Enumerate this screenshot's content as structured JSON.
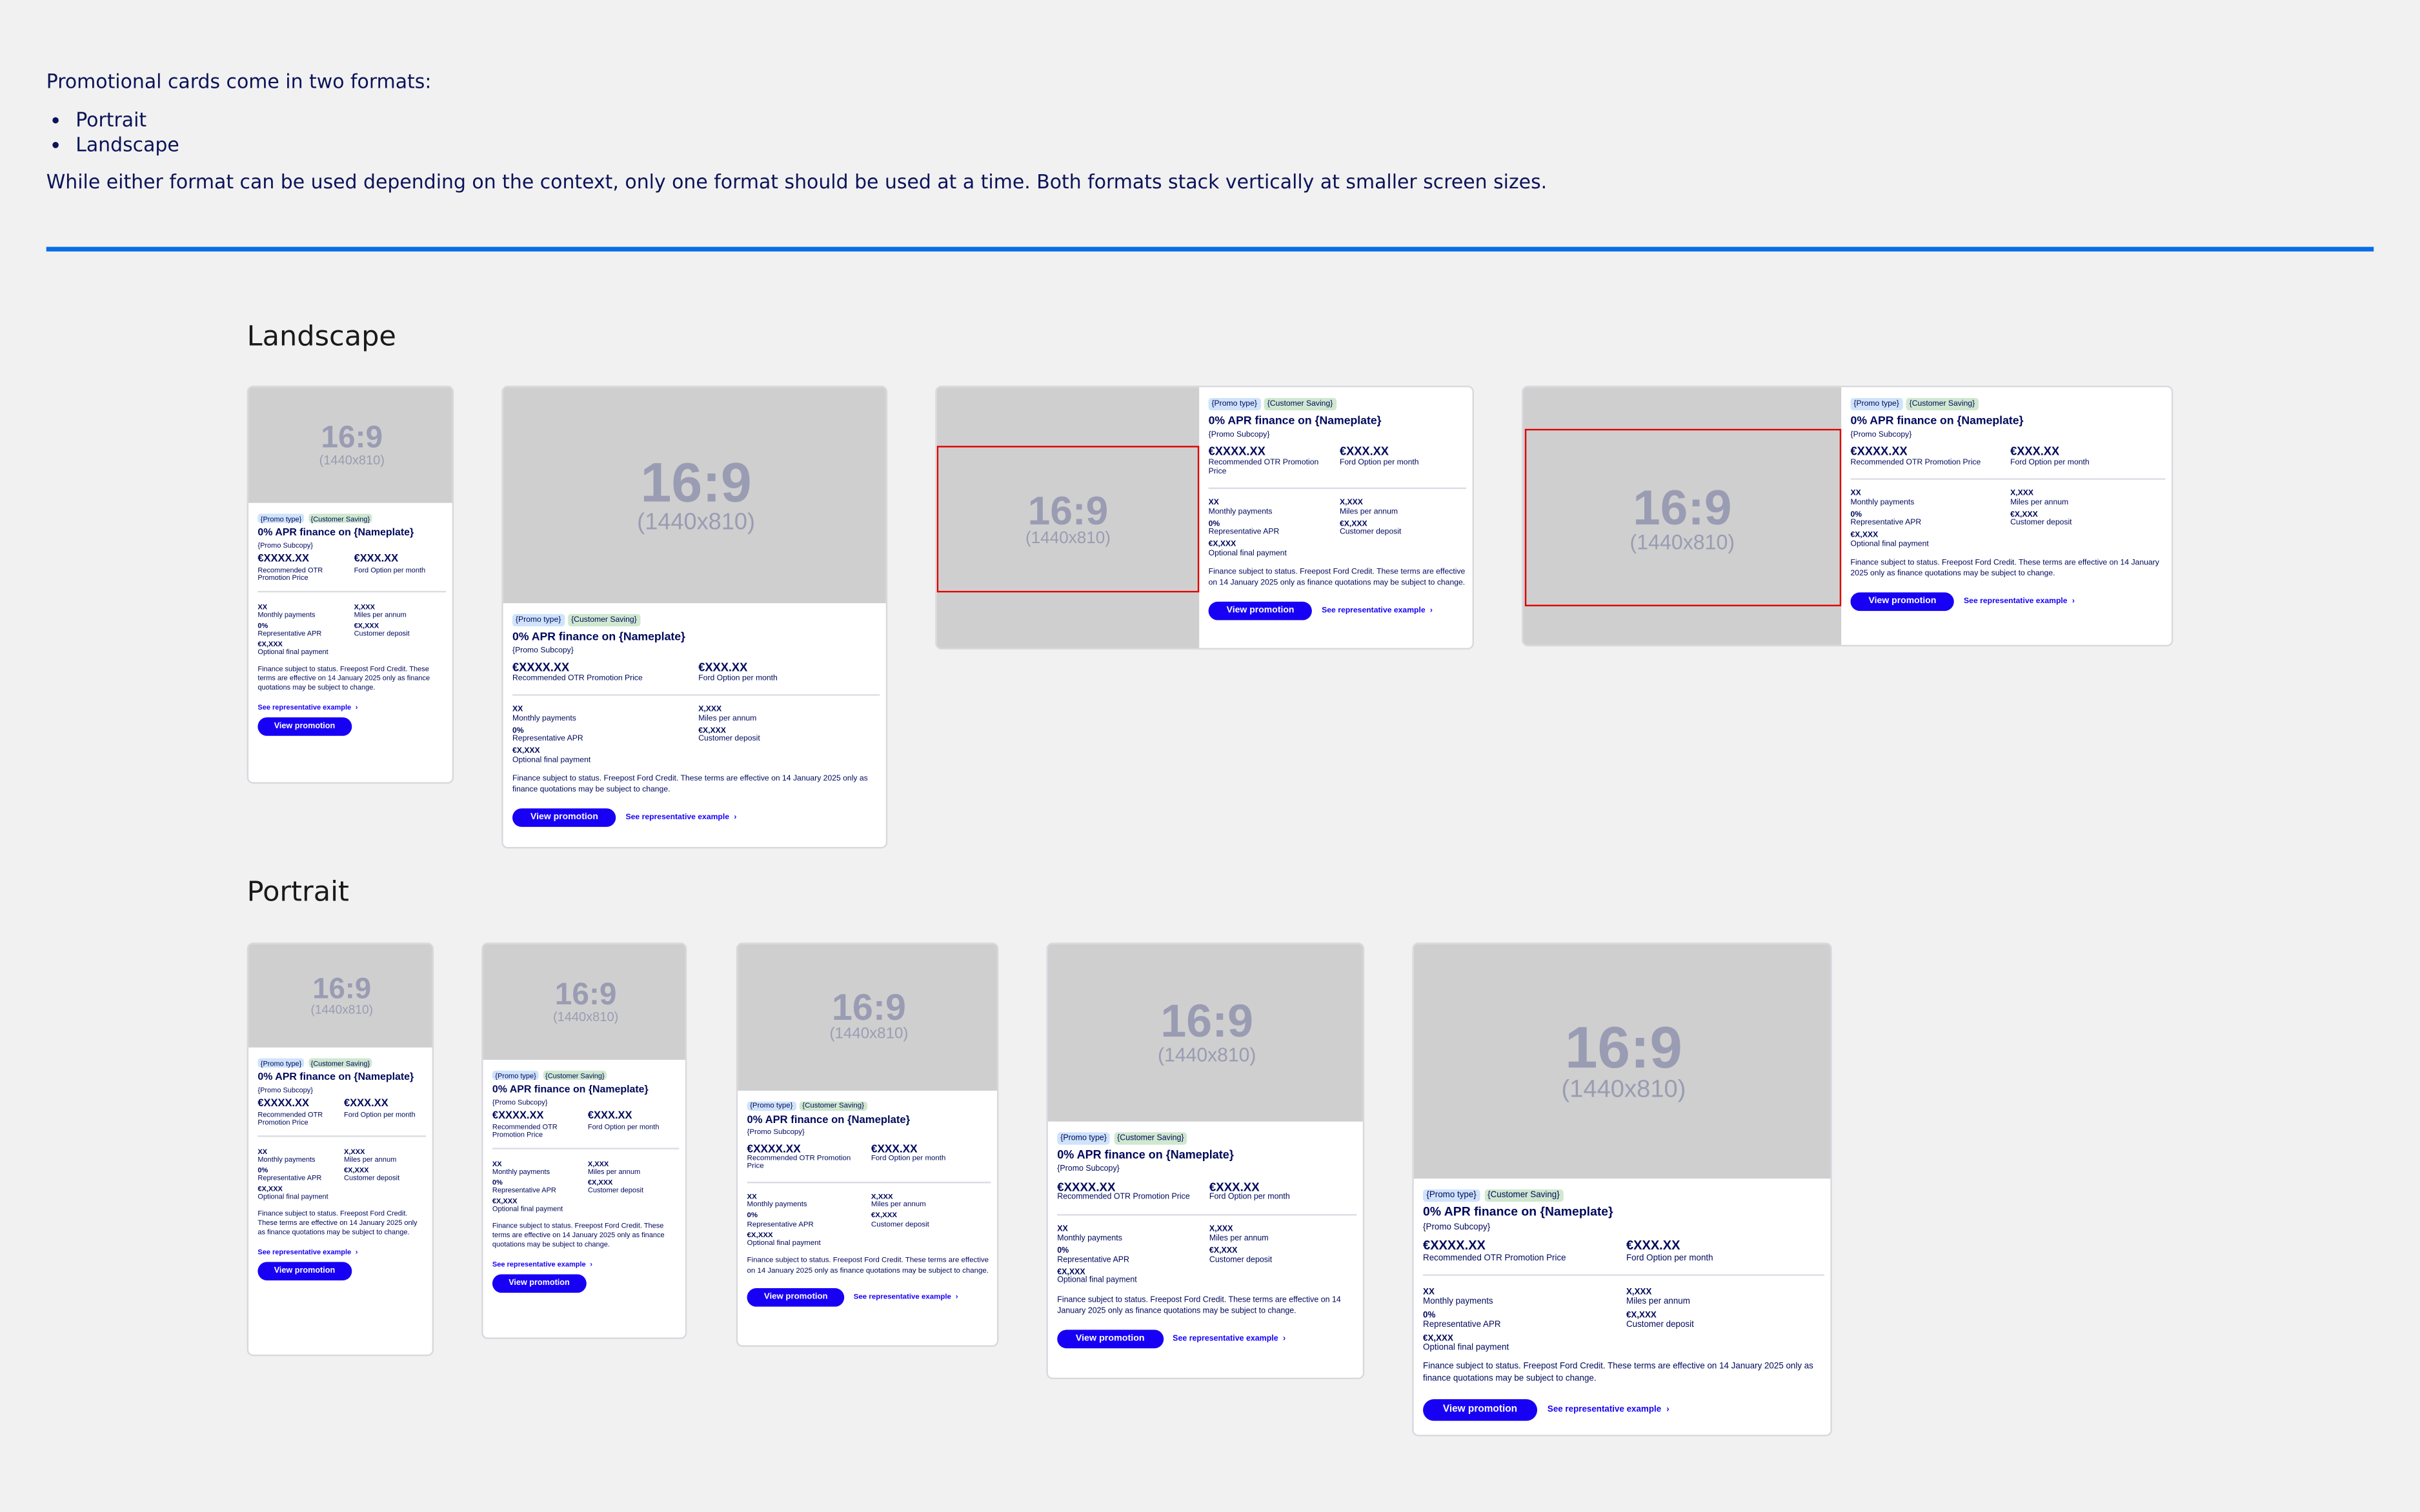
{
  "intro": {
    "heading": "Promotional cards come in two formats:",
    "bullets": [
      "Portrait",
      "Landscape"
    ],
    "note": "While  either format can be used depending on the context, only one format  should be used at a time.  Both formats stack vertically at smaller  screen sizes."
  },
  "sections": {
    "landscape": "Landscape",
    "portrait": "Portrait"
  },
  "placeholder": {
    "ratio": "16:9",
    "dims": "(1440x810)"
  },
  "card": {
    "promo_type": "{Promo type}",
    "customer_saving": "{Customer Saving}",
    "title": "0% APR finance on {Nameplate}",
    "subcopy": "{Promo Subcopy}",
    "price": "€XXXX.XX",
    "price_label": "Recommended OTR Promotion Price",
    "monthly": "€XXX.XX",
    "monthly_label": "Ford Option per month",
    "details": [
      {
        "value": "XX",
        "label": "Monthly payments"
      },
      {
        "value": "X,XXX",
        "label": "Miles per annum"
      },
      {
        "value": "0%",
        "label": "Representative APR"
      },
      {
        "value": "€X,XXX",
        "label": "Customer deposit"
      },
      {
        "value": "€X,XXX",
        "label": "Optional final payment"
      }
    ],
    "terms": "Finance subject to status. Freepost Ford Credit. These terms are effective on 14 January 2025 only as finance quotations may be subject to change.",
    "link": "See representative example",
    "button": "View promotion"
  },
  "colors": {
    "text": "#00095b",
    "accent": "#1700f4",
    "rule": "#0a6de8",
    "promo_tag": "#cfe3fb",
    "saving_tag": "#cfe8cf",
    "highlight": "#e00000"
  }
}
